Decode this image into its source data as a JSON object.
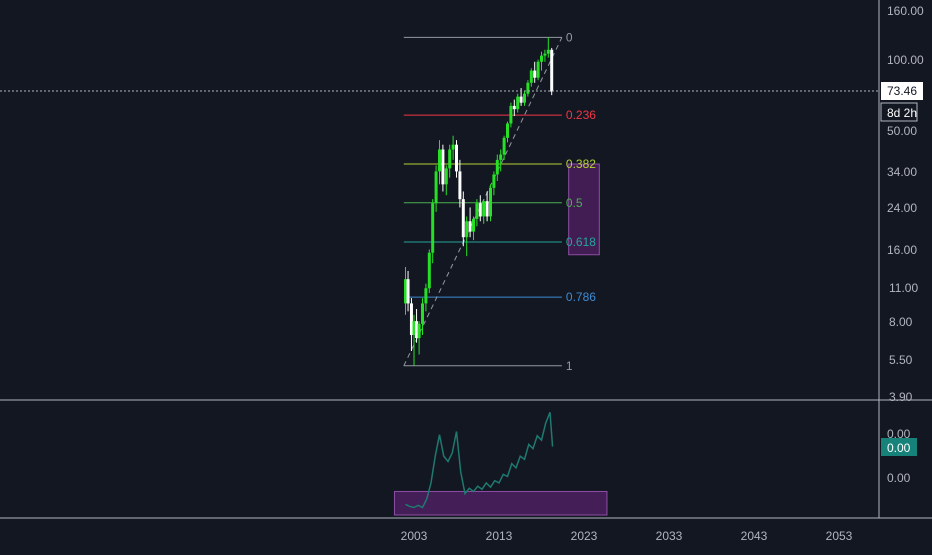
{
  "colors": {
    "background": "#131722",
    "grid_border": "#B2B5BE",
    "axis_text": "#B2B5BE",
    "candle_up": "#26E026",
    "candle_down": "#FFFFFF",
    "fib_0": "#9598A1",
    "fib_0236": "#F23645",
    "fib_0382": "#B4D334",
    "fib_05": "#4CAF50",
    "fib_0618": "#26A69A",
    "fib_0786": "#3D8BD4",
    "fib_1": "#9598A1",
    "rect_fill": "#4A1F5C",
    "rect_border": "#8E4FA5",
    "indicator_line": "#1E7A70",
    "indicator_badge": "#17827A",
    "price_label_bg": "#FFFFFF",
    "price_label_text": "#131722"
  },
  "price_axis": {
    "labels": [
      "160.00",
      "100.00",
      "73.46",
      "50.00",
      "34.00",
      "24.00",
      "16.00",
      "11.00",
      "8.00",
      "5.50",
      "3.90"
    ],
    "current_price": "73.46",
    "countdown": "8d 2h"
  },
  "indicator_axis": {
    "labels": [
      "0.00",
      "0.00",
      "0.00"
    ],
    "badge_value": "0.00"
  },
  "time_axis": {
    "labels": [
      "2003",
      "2013",
      "2023",
      "2033",
      "2043",
      "2053"
    ]
  },
  "chart_data": [
    {
      "type": "candlestick",
      "scale": "log",
      "x_ticks": [
        "2003",
        "2013",
        "2023",
        "2033",
        "2043",
        "2053"
      ],
      "y_ticks": [
        3.9,
        5.5,
        8,
        11,
        16,
        24,
        34,
        50,
        73.46,
        100,
        160
      ],
      "ylim": [
        3.9,
        160
      ],
      "last_price": 73.46,
      "series": [
        {
          "values": [
            [
              2002.0,
              9.5,
              13.5,
              8.5,
              12.0
            ],
            [
              2002.3,
              12.0,
              13.0,
              8.8,
              9.5
            ],
            [
              2002.7,
              9.5,
              10.0,
              6.0,
              7.0
            ],
            [
              2003.0,
              7.0,
              8.5,
              5.2,
              8.0
            ],
            [
              2003.3,
              8.0,
              9.0,
              6.5,
              6.8
            ],
            [
              2003.6,
              6.8,
              8.0,
              5.8,
              7.8
            ],
            [
              2004.0,
              7.8,
              10.0,
              7.0,
              9.5
            ],
            [
              2004.4,
              9.5,
              11.5,
              8.8,
              11.0
            ],
            [
              2004.8,
              11.0,
              16.0,
              10.5,
              15.5
            ],
            [
              2005.2,
              15.5,
              26.0,
              14.0,
              25.0
            ],
            [
              2005.6,
              25.0,
              36.0,
              23.0,
              34.0
            ],
            [
              2006.0,
              34.0,
              46.0,
              30.0,
              42.0
            ],
            [
              2006.4,
              42.0,
              44.0,
              28.0,
              30.0
            ],
            [
              2006.8,
              30.0,
              36.0,
              27.0,
              35.0
            ],
            [
              2007.2,
              35.0,
              44.0,
              32.0,
              42.0
            ],
            [
              2007.6,
              42.0,
              48.0,
              38.0,
              44.0
            ],
            [
              2008.0,
              44.0,
              46.0,
              32.0,
              34.0
            ],
            [
              2008.4,
              34.0,
              38.0,
              24.0,
              26.0
            ],
            [
              2008.8,
              26.0,
              28.0,
              16.5,
              18.0
            ],
            [
              2009.2,
              18.0,
              22.0,
              15.0,
              21.0
            ],
            [
              2009.6,
              21.0,
              24.0,
              18.0,
              19.0
            ],
            [
              2010.0,
              19.0,
              22.0,
              17.5,
              21.5
            ],
            [
              2010.4,
              21.5,
              26.0,
              20.0,
              25.0
            ],
            [
              2010.8,
              25.0,
              27.0,
              21.0,
              22.0
            ],
            [
              2011.2,
              22.0,
              26.0,
              20.5,
              25.5
            ],
            [
              2011.6,
              25.5,
              28.0,
              21.0,
              22.0
            ],
            [
              2012.0,
              22.0,
              30.0,
              21.0,
              29.0
            ],
            [
              2012.4,
              29.0,
              34.0,
              27.0,
              33.0
            ],
            [
              2012.8,
              33.0,
              40.0,
              31.0,
              38.0
            ],
            [
              2013.2,
              38.0,
              42.0,
              34.0,
              40.0
            ],
            [
              2013.6,
              40.0,
              48.0,
              38.0,
              47.0
            ],
            [
              2014.0,
              47.0,
              55.0,
              45.0,
              54.0
            ],
            [
              2014.4,
              54.0,
              66.0,
              52.0,
              64.0
            ],
            [
              2014.8,
              64.0,
              68.0,
              58.0,
              62.0
            ],
            [
              2015.2,
              62.0,
              72.0,
              60.0,
              70.0
            ],
            [
              2015.6,
              70.0,
              76.0,
              64.0,
              66.0
            ],
            [
              2016.0,
              66.0,
              74.0,
              64.0,
              72.0
            ],
            [
              2016.4,
              72.0,
              82.0,
              70.0,
              80.0
            ],
            [
              2016.8,
              80.0,
              92.0,
              77.0,
              90.0
            ],
            [
              2017.2,
              90.0,
              98.0,
              80.0,
              84.0
            ],
            [
              2017.6,
              84.0,
              100.0,
              82.0,
              98.0
            ],
            [
              2018.0,
              98.0,
              108.0,
              90.0,
              104.0
            ],
            [
              2018.4,
              104.0,
              110.0,
              98.0,
              106.0
            ],
            [
              2018.8,
              106.0,
              124.0,
              102.0,
              110.0
            ],
            [
              2019.2,
              110.0,
              112.0,
              71.0,
              73.46
            ]
          ]
        }
      ],
      "fib_levels": [
        {
          "label": "0",
          "price": 124
        },
        {
          "label": "0.236",
          "price": 58.5
        },
        {
          "label": "0.382",
          "price": 36.5
        },
        {
          "label": "0.5",
          "price": 25.1
        },
        {
          "label": "0.618",
          "price": 17.2
        },
        {
          "label": "0.786",
          "price": 10.1
        },
        {
          "label": "1",
          "price": 5.2
        }
      ],
      "fib_range": {
        "x_start": 2001.8,
        "x_end": 2020.4
      },
      "trend_line": {
        "x": [
          2001.8,
          2020.4
        ],
        "y": [
          5.2,
          124
        ]
      },
      "zone": {
        "x": [
          2021.2,
          2024.8
        ],
        "y": [
          15.2,
          36.5
        ]
      }
    },
    {
      "type": "line",
      "ylim": [
        0,
        1
      ],
      "series": [
        {
          "values": [
            [
              2002.0,
              0.1
            ],
            [
              2002.5,
              0.08
            ],
            [
              2003.0,
              0.07
            ],
            [
              2003.5,
              0.09
            ],
            [
              2004.0,
              0.07
            ],
            [
              2004.5,
              0.15
            ],
            [
              2005.0,
              0.3
            ],
            [
              2005.5,
              0.55
            ],
            [
              2006.0,
              0.75
            ],
            [
              2006.5,
              0.55
            ],
            [
              2007.0,
              0.5
            ],
            [
              2007.5,
              0.58
            ],
            [
              2008.0,
              0.78
            ],
            [
              2008.5,
              0.4
            ],
            [
              2009.0,
              0.2
            ],
            [
              2009.5,
              0.25
            ],
            [
              2010.0,
              0.22
            ],
            [
              2010.5,
              0.27
            ],
            [
              2011.0,
              0.24
            ],
            [
              2011.5,
              0.3
            ],
            [
              2012.0,
              0.26
            ],
            [
              2012.5,
              0.32
            ],
            [
              2013.0,
              0.3
            ],
            [
              2013.5,
              0.38
            ],
            [
              2014.0,
              0.36
            ],
            [
              2014.5,
              0.48
            ],
            [
              2015.0,
              0.44
            ],
            [
              2015.5,
              0.55
            ],
            [
              2016.0,
              0.52
            ],
            [
              2016.5,
              0.66
            ],
            [
              2017.0,
              0.62
            ],
            [
              2017.5,
              0.74
            ],
            [
              2018.0,
              0.7
            ],
            [
              2018.5,
              0.86
            ],
            [
              2019.0,
              0.96
            ],
            [
              2019.3,
              0.64
            ]
          ]
        }
      ],
      "zone": {
        "x": [
          2000.7,
          2025.7
        ],
        "y": [
          0.0,
          0.22
        ]
      }
    }
  ]
}
